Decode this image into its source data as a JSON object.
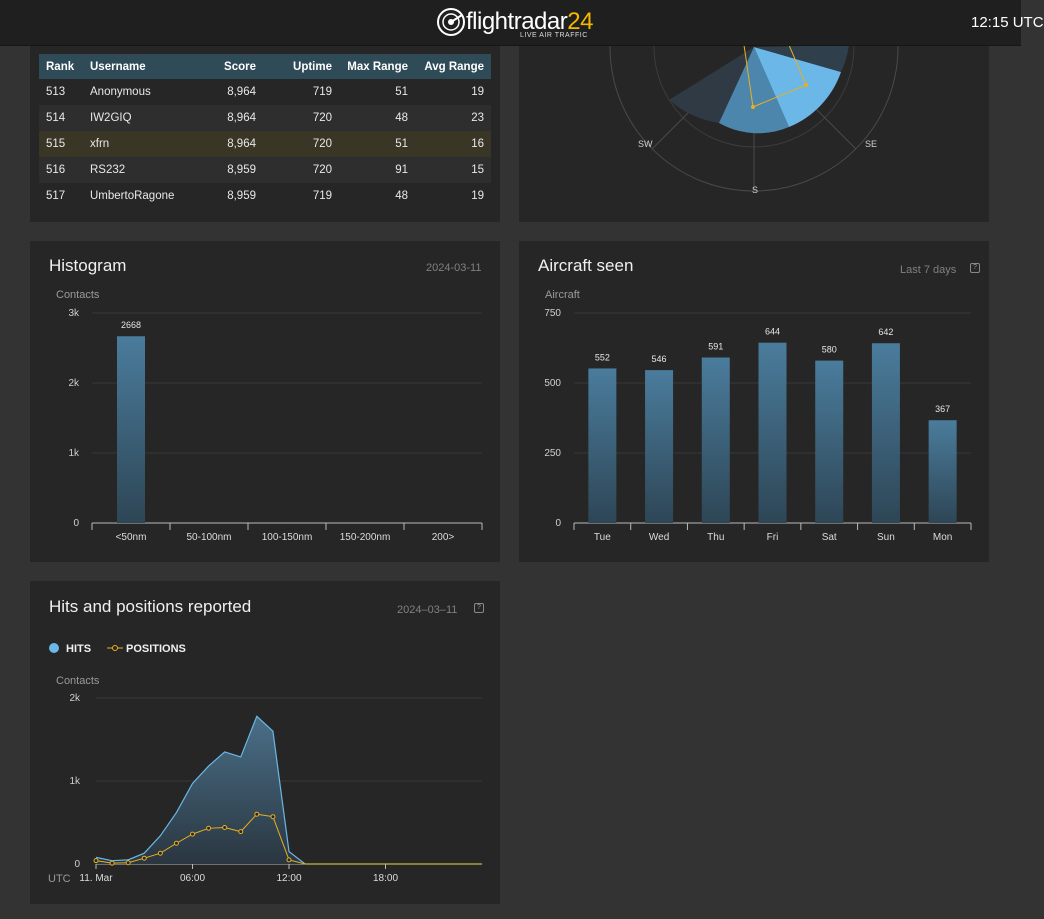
{
  "header": {
    "logo_text_main": "flightradar",
    "logo_text_accent": "24",
    "logo_tagline": "LIVE AIR TRAFFIC",
    "clock": "12:15 UTC"
  },
  "ranking": {
    "columns": [
      "Rank",
      "Username",
      "Score",
      "Uptime",
      "Max Range",
      "Avg Range"
    ],
    "rows": [
      {
        "rank": "513",
        "username": "Anonymous",
        "score": "8,964",
        "uptime": "719",
        "max_range": "51",
        "avg_range": "19"
      },
      {
        "rank": "514",
        "username": "IW2GIQ",
        "score": "8,964",
        "uptime": "720",
        "max_range": "48",
        "avg_range": "23"
      },
      {
        "rank": "515",
        "username": "xfrn",
        "score": "8,964",
        "uptime": "720",
        "max_range": "51",
        "avg_range": "16"
      },
      {
        "rank": "516",
        "username": "RS232",
        "score": "8,959",
        "uptime": "720",
        "max_range": "91",
        "avg_range": "15"
      },
      {
        "rank": "517",
        "username": "UmbertoRagone",
        "score": "8,959",
        "uptime": "719",
        "max_range": "48",
        "avg_range": "19"
      }
    ],
    "highlight_color": "#3a3626"
  },
  "polar": {
    "labels": [
      "SW",
      "S",
      "SE"
    ]
  },
  "histogram": {
    "title": "Histogram",
    "date": "2024-03-11",
    "ylabel": "Contacts"
  },
  "aircraft": {
    "title": "Aircraft seen",
    "meta": "Last 7 days",
    "help": "?",
    "ylabel": "Aircraft"
  },
  "hits": {
    "title": "Hits and positions reported",
    "date": "2024–03–11",
    "help": "?",
    "legend_hits": "HITS",
    "legend_positions": "POSITIONS",
    "ylabel": "Contacts",
    "tz": "UTC"
  },
  "chart_data": [
    {
      "type": "bar",
      "ylabel": "Contacts",
      "categories": [
        "<50nm",
        "50-100nm",
        "100-150nm",
        "150-200nm",
        "200>"
      ],
      "values": [
        2668,
        0,
        0,
        0,
        0
      ],
      "data_labels": [
        "2668",
        "",
        "",
        "",
        ""
      ],
      "ylim": [
        0,
        3000
      ],
      "yticks": [
        "0",
        "1k",
        "2k",
        "3k"
      ],
      "grid": true,
      "color": "#4a7c9c"
    },
    {
      "type": "bar",
      "ylabel": "Aircraft",
      "categories": [
        "Tue",
        "Wed",
        "Thu",
        "Fri",
        "Sat",
        "Sun",
        "Mon"
      ],
      "values": [
        552,
        546,
        591,
        644,
        580,
        642,
        367
      ],
      "ylim": [
        0,
        750
      ],
      "yticks": [
        "0",
        "250",
        "500",
        "750"
      ],
      "grid": true,
      "color": "#4a7c9c"
    },
    {
      "type": "area",
      "ylabel": "Contacts",
      "x": [
        0,
        1,
        2,
        3,
        4,
        5,
        6,
        7,
        8,
        9,
        10,
        11,
        12,
        13,
        14,
        15,
        16,
        17,
        18,
        19,
        20,
        21,
        22,
        23
      ],
      "xticks": [
        {
          "x": 0,
          "label": "11. Mar"
        },
        {
          "x": 6,
          "label": "06:00"
        },
        {
          "x": 12,
          "label": "12:00"
        },
        {
          "x": 18,
          "label": "18:00"
        }
      ],
      "series": [
        {
          "name": "HITS",
          "color": "#6ab7e8",
          "values": [
            80,
            40,
            50,
            130,
            340,
            620,
            970,
            1180,
            1350,
            1290,
            1780,
            1600,
            150,
            0,
            0,
            0,
            0,
            0,
            0,
            0,
            0,
            0,
            0,
            0
          ]
        },
        {
          "name": "POSITIONS",
          "color": "#e8b020",
          "values": [
            40,
            10,
            15,
            70,
            130,
            250,
            360,
            430,
            440,
            390,
            600,
            570,
            50,
            0,
            0,
            0,
            0,
            0,
            0,
            0,
            0,
            0,
            0,
            0
          ]
        }
      ],
      "ylim": [
        0,
        2000
      ],
      "yticks": [
        "0",
        "1k",
        "2k"
      ],
      "grid": true
    }
  ]
}
